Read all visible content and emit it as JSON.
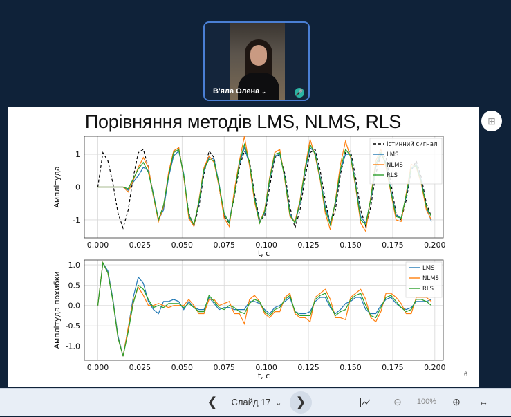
{
  "participant": {
    "name": "В'яла Олена"
  },
  "slide": {
    "title": "Порівняння методів LMS, NLMS,  RLS",
    "number": "6"
  },
  "colors": {
    "true": "#000000",
    "lms": "#1f77b4",
    "nlms": "#ff7f0e",
    "rls": "#2ca02c"
  },
  "icons": {
    "panel": "grid-plus-icon",
    "mic": "mic-icon"
  },
  "chart_data": [
    {
      "type": "line",
      "xlabel": "t, с",
      "ylabel": "Амплітуда",
      "xlim": [
        -0.008,
        0.205
      ],
      "ylim": [
        -1.55,
        1.55
      ],
      "xticks": [
        "0.000",
        "0.025",
        "0.050",
        "0.075",
        "0.100",
        "0.125",
        "0.150",
        "0.175",
        "0.200"
      ],
      "yticks": [
        "-1",
        "0",
        "1"
      ],
      "grid": true,
      "legend_position": "top-right",
      "x": [
        0.0,
        0.003,
        0.006,
        0.009,
        0.012,
        0.015,
        0.018,
        0.021,
        0.024,
        0.027,
        0.03,
        0.033,
        0.036,
        0.039,
        0.042,
        0.045,
        0.048,
        0.051,
        0.054,
        0.057,
        0.06,
        0.063,
        0.066,
        0.069,
        0.072,
        0.075,
        0.078,
        0.081,
        0.084,
        0.087,
        0.09,
        0.093,
        0.096,
        0.099,
        0.102,
        0.105,
        0.108,
        0.111,
        0.114,
        0.117,
        0.12,
        0.123,
        0.126,
        0.129,
        0.132,
        0.135,
        0.138,
        0.141,
        0.144,
        0.147,
        0.15,
        0.153,
        0.156,
        0.159,
        0.162,
        0.165,
        0.168,
        0.171,
        0.174,
        0.177,
        0.18,
        0.183,
        0.186,
        0.189,
        0.192,
        0.195,
        0.198
      ],
      "series": [
        {
          "name": "Істинний сигнал",
          "style": "dashed",
          "values": [
            0.0,
            1.05,
            0.8,
            0.1,
            -0.8,
            -1.25,
            -0.7,
            0.3,
            1.05,
            1.15,
            0.6,
            -0.3,
            -1.0,
            -0.6,
            0.4,
            1.1,
            1.2,
            0.3,
            -0.8,
            -1.2,
            -0.6,
            0.4,
            1.1,
            0.9,
            0.0,
            -0.9,
            -1.1,
            -0.3,
            0.6,
            1.1,
            0.8,
            -0.2,
            -1.0,
            -0.9,
            0.0,
            0.9,
            1.0,
            0.4,
            -0.6,
            -1.25,
            -0.7,
            0.3,
            1.05,
            1.15,
            0.5,
            -0.4,
            -1.15,
            -0.7,
            0.4,
            1.05,
            1.1,
            0.3,
            -0.7,
            -1.2,
            -0.6,
            0.4,
            1.0,
            0.9,
            0.1,
            -0.8,
            -1.0,
            -0.4,
            0.5,
            0.8,
            0.3,
            -0.5,
            -0.9
          ]
        },
        {
          "name": "LMS",
          "values": [
            0.0,
            0.0,
            0.0,
            0.0,
            0.0,
            0.0,
            -0.1,
            0.15,
            0.35,
            0.6,
            0.5,
            -0.2,
            -1.0,
            -0.7,
            0.3,
            0.95,
            1.1,
            0.4,
            -0.9,
            -1.15,
            -0.5,
            0.5,
            0.9,
            0.85,
            0.1,
            -0.85,
            -1.05,
            -0.2,
            0.7,
            1.2,
            0.7,
            -0.3,
            -1.05,
            -0.8,
            0.2,
            0.95,
            1.0,
            0.3,
            -0.8,
            -1.1,
            -0.5,
            0.5,
            1.2,
            1.05,
            0.3,
            -0.6,
            -1.1,
            -0.5,
            0.5,
            1.0,
            1.0,
            0.1,
            -0.9,
            -1.1,
            -0.4,
            0.6,
            1.0,
            0.75,
            -0.1,
            -0.85,
            -0.95,
            -0.3,
            0.55,
            0.7,
            0.2,
            -0.6,
            -1.05
          ]
        },
        {
          "name": "NLMS",
          "values": [
            0.0,
            0.0,
            0.0,
            0.0,
            0.0,
            0.0,
            -0.15,
            0.2,
            0.6,
            0.9,
            0.6,
            -0.3,
            -1.05,
            -0.6,
            0.45,
            1.1,
            1.2,
            0.3,
            -0.95,
            -1.2,
            -0.4,
            0.6,
            0.95,
            0.75,
            0.0,
            -0.95,
            -1.2,
            -0.1,
            0.8,
            1.55,
            0.65,
            -0.45,
            -1.1,
            -0.7,
            0.3,
            1.05,
            1.15,
            0.2,
            -0.9,
            -1.05,
            -0.4,
            0.6,
            1.45,
            0.95,
            0.2,
            -0.8,
            -1.3,
            -0.4,
            0.7,
            1.4,
            0.9,
            0.0,
            -1.1,
            -1.35,
            -0.3,
            0.8,
            1.15,
            0.6,
            -0.2,
            -1.0,
            -1.05,
            -0.2,
            0.7,
            0.6,
            0.1,
            -0.7,
            -1.0
          ]
        },
        {
          "name": "RLS",
          "values": [
            0.0,
            0.0,
            0.0,
            0.0,
            0.0,
            0.0,
            -0.05,
            0.25,
            0.55,
            0.75,
            0.45,
            -0.25,
            -1.0,
            -0.55,
            0.35,
            1.05,
            1.15,
            0.35,
            -0.85,
            -1.15,
            -0.45,
            0.55,
            0.85,
            0.8,
            0.05,
            -0.8,
            -1.1,
            -0.25,
            0.75,
            1.3,
            0.75,
            -0.35,
            -1.1,
            -0.75,
            0.25,
            1.0,
            1.05,
            0.25,
            -0.85,
            -1.1,
            -0.45,
            0.55,
            1.3,
            1.0,
            0.25,
            -0.7,
            -1.15,
            -0.45,
            0.55,
            1.15,
            0.95,
            0.05,
            -1.0,
            -1.15,
            -0.35,
            0.7,
            1.05,
            0.7,
            -0.15,
            -0.9,
            -0.95,
            -0.25,
            0.6,
            0.65,
            0.15,
            -0.6,
            -0.9
          ]
        }
      ]
    },
    {
      "type": "line",
      "xlabel": "t, с",
      "ylabel": "Амплітуда похибки",
      "xlim": [
        -0.008,
        0.205
      ],
      "ylim": [
        -1.35,
        1.12
      ],
      "xticks": [
        "0.000",
        "0.025",
        "0.050",
        "0.075",
        "0.100",
        "0.125",
        "0.150",
        "0.175",
        "0.200"
      ],
      "yticks": [
        "-1.0",
        "-0.5",
        "0.0",
        "0.5",
        "1.0"
      ],
      "grid": true,
      "legend_position": "top-right",
      "x": [
        0.0,
        0.003,
        0.006,
        0.009,
        0.012,
        0.015,
        0.018,
        0.021,
        0.024,
        0.027,
        0.03,
        0.033,
        0.036,
        0.039,
        0.042,
        0.045,
        0.048,
        0.051,
        0.054,
        0.057,
        0.06,
        0.063,
        0.066,
        0.069,
        0.072,
        0.075,
        0.078,
        0.081,
        0.084,
        0.087,
        0.09,
        0.093,
        0.096,
        0.099,
        0.102,
        0.105,
        0.108,
        0.111,
        0.114,
        0.117,
        0.12,
        0.123,
        0.126,
        0.129,
        0.132,
        0.135,
        0.138,
        0.141,
        0.144,
        0.147,
        0.15,
        0.153,
        0.156,
        0.159,
        0.162,
        0.165,
        0.168,
        0.171,
        0.174,
        0.177,
        0.18,
        0.183,
        0.186,
        0.189,
        0.192,
        0.195,
        0.198
      ],
      "series": [
        {
          "name": "LMS",
          "values": [
            0.0,
            1.05,
            0.85,
            0.15,
            -0.75,
            -1.25,
            -0.55,
            0.2,
            0.7,
            0.55,
            0.1,
            -0.1,
            -0.2,
            0.1,
            0.1,
            0.15,
            0.1,
            -0.1,
            0.1,
            -0.05,
            -0.1,
            -0.1,
            0.2,
            0.05,
            -0.1,
            -0.05,
            -0.05,
            -0.1,
            -0.1,
            -0.1,
            0.1,
            0.1,
            0.05,
            -0.1,
            -0.2,
            -0.05,
            0.0,
            0.1,
            0.2,
            -0.15,
            -0.2,
            -0.2,
            -0.15,
            0.1,
            0.2,
            0.2,
            -0.05,
            -0.2,
            -0.1,
            0.05,
            0.1,
            0.2,
            0.2,
            -0.1,
            -0.2,
            -0.2,
            0.0,
            0.15,
            0.2,
            0.05,
            -0.05,
            -0.1,
            -0.05,
            0.1,
            0.1,
            0.1,
            0.15
          ]
        },
        {
          "name": "NLMS",
          "values": [
            0.0,
            1.05,
            0.8,
            0.1,
            -0.8,
            -1.25,
            -0.55,
            0.1,
            0.45,
            0.25,
            0.0,
            0.0,
            0.05,
            0.0,
            -0.05,
            0.0,
            0.0,
            0.0,
            0.15,
            0.0,
            -0.2,
            -0.2,
            0.15,
            0.15,
            0.0,
            0.05,
            0.1,
            -0.2,
            -0.2,
            -0.45,
            0.15,
            0.25,
            0.1,
            -0.2,
            -0.3,
            -0.15,
            -0.15,
            0.2,
            0.3,
            -0.2,
            -0.3,
            -0.3,
            -0.4,
            0.2,
            0.3,
            0.4,
            0.15,
            -0.3,
            -0.3,
            -0.35,
            0.2,
            0.3,
            0.4,
            0.15,
            -0.3,
            -0.4,
            -0.15,
            0.3,
            0.3,
            0.2,
            0.05,
            -0.2,
            -0.2,
            0.2,
            0.2,
            0.2,
            0.1
          ]
        },
        {
          "name": "RLS",
          "values": [
            0.0,
            1.05,
            0.8,
            0.1,
            -0.8,
            -1.25,
            -0.65,
            0.05,
            0.5,
            0.4,
            0.15,
            -0.05,
            0.0,
            -0.05,
            0.05,
            0.05,
            0.05,
            -0.05,
            0.05,
            -0.05,
            -0.15,
            -0.15,
            0.25,
            0.1,
            -0.05,
            -0.1,
            0.0,
            -0.05,
            -0.15,
            -0.2,
            0.05,
            0.15,
            0.1,
            -0.15,
            -0.25,
            -0.1,
            -0.05,
            0.15,
            0.25,
            -0.15,
            -0.25,
            -0.25,
            -0.25,
            0.15,
            0.25,
            0.3,
            0.0,
            -0.25,
            -0.15,
            -0.1,
            0.15,
            0.25,
            0.3,
            0.0,
            -0.25,
            -0.3,
            -0.05,
            0.2,
            0.25,
            0.1,
            -0.05,
            -0.15,
            -0.1,
            0.15,
            0.15,
            0.1,
            0.0
          ]
        }
      ]
    }
  ],
  "toolbar": {
    "prev_label": "❮",
    "slide_indicator": "Слайд 17",
    "next_label": "❯",
    "zoom_level": "100%",
    "zoom_out": "⊖",
    "zoom_in": "⊕",
    "fit_label": "↔",
    "chart_icon": "chart-icon"
  }
}
